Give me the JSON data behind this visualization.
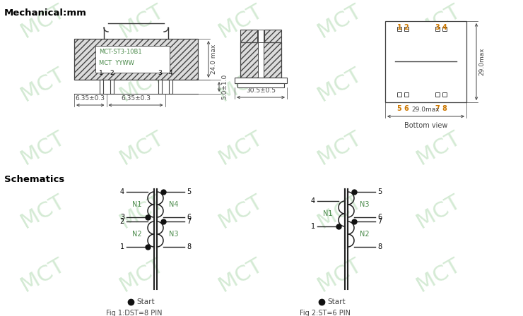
{
  "title": "Mechanical:mm",
  "schematics_title": "Schematics",
  "bg_color": "#ffffff",
  "line_color": "#000000",
  "green_text_color": "#4a8a4a",
  "dim_color": "#444444",
  "label_text": [
    "MCT-ST3-10B1",
    "MCT  YYWW"
  ],
  "dim_labels": {
    "height_main": "24.0 max",
    "height_pin": "5.0±1.0",
    "pin_spacing1": "6.35±0.3",
    "pin_spacing2": "6.35±0.3",
    "depth": "30.5±0.5",
    "width_bottom": "29.0max",
    "height_bottom": "29.0max",
    "bottom_view": "Bottom view"
  },
  "pin_labels_front": [
    "1",
    "2",
    "3",
    "4"
  ],
  "pin_labels_bottom_top": [
    "1",
    "2",
    "3",
    "4"
  ],
  "pin_labels_bottom_bot": [
    "5",
    "6",
    "7",
    "8"
  ],
  "watermark_color": "#b8ddb8",
  "orange_color": "#cc7700",
  "fig1_label": "Fig 1:DST=8 PIN",
  "fig2_label": "Fig 2:ST=6 PIN",
  "start_label": "Start"
}
